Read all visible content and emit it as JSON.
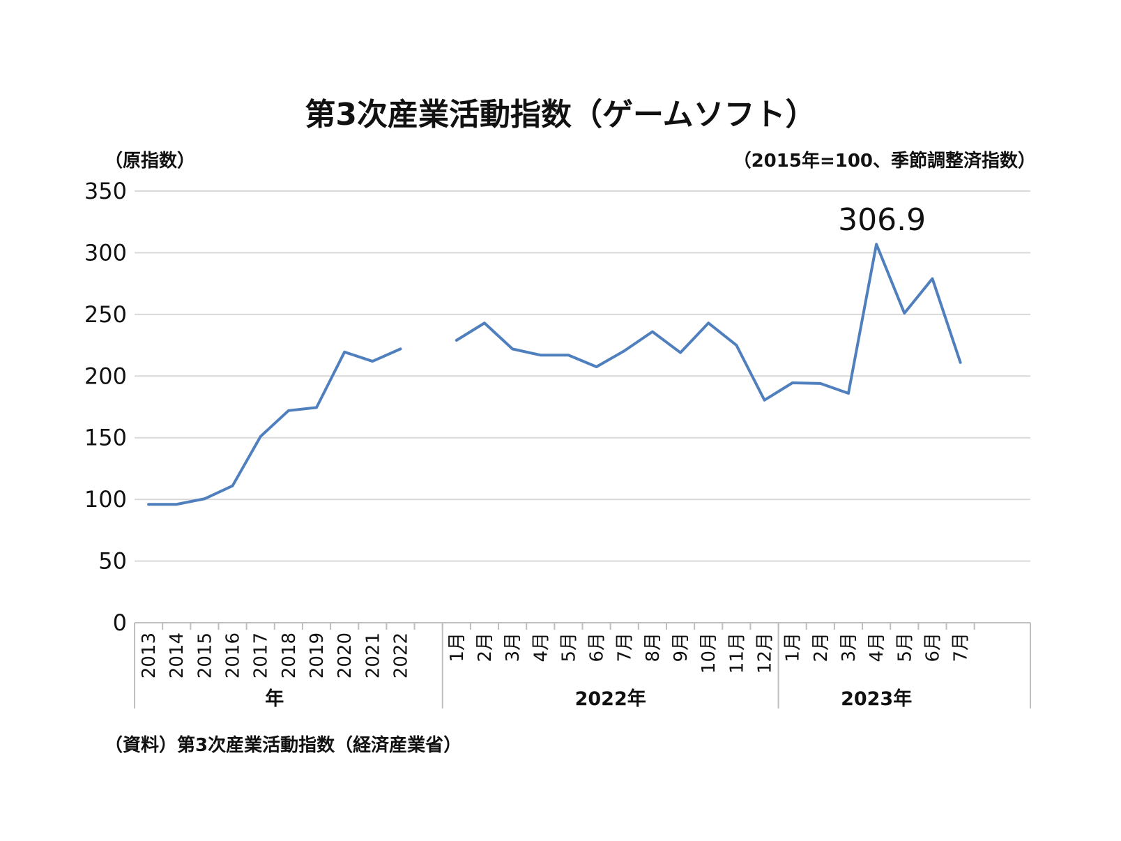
{
  "chart_data": {
    "type": "line",
    "title": "第3次産業活動指数（ゲームソフト）",
    "left_note": "（原指数）",
    "right_note": "（2015年=100、季節調整済指数）",
    "source": "（資料）第3次産業活動指数（経済産業省）",
    "ylim": [
      0,
      350
    ],
    "yticks": [
      "0",
      "50",
      "100",
      "150",
      "200",
      "250",
      "300",
      "350"
    ],
    "grid": true,
    "line_color": "#4f7fbd",
    "annotation": "306.9",
    "groups": [
      {
        "label": "年",
        "categories": [
          "2013",
          "2014",
          "2015",
          "2016",
          "2017",
          "2018",
          "2019",
          "2020",
          "2021",
          "2022"
        ],
        "values": [
          96,
          96,
          100.5,
          111,
          151,
          172,
          174.5,
          219.5,
          212,
          222
        ]
      },
      {
        "label": "2022年",
        "categories": [
          "1月",
          "2月",
          "3月",
          "4月",
          "5月",
          "6月",
          "7月",
          "8月",
          "9月",
          "10月",
          "11月",
          "12月"
        ],
        "values": [
          229,
          243,
          222,
          217,
          217,
          207.5,
          220.5,
          236,
          219,
          243,
          225,
          180.5
        ]
      },
      {
        "label": "2023年",
        "categories": [
          "1月",
          "2月",
          "3月",
          "4月",
          "5月",
          "6月",
          "7月"
        ],
        "values": [
          194.5,
          194,
          186,
          306.9,
          251,
          279,
          211
        ]
      }
    ]
  }
}
